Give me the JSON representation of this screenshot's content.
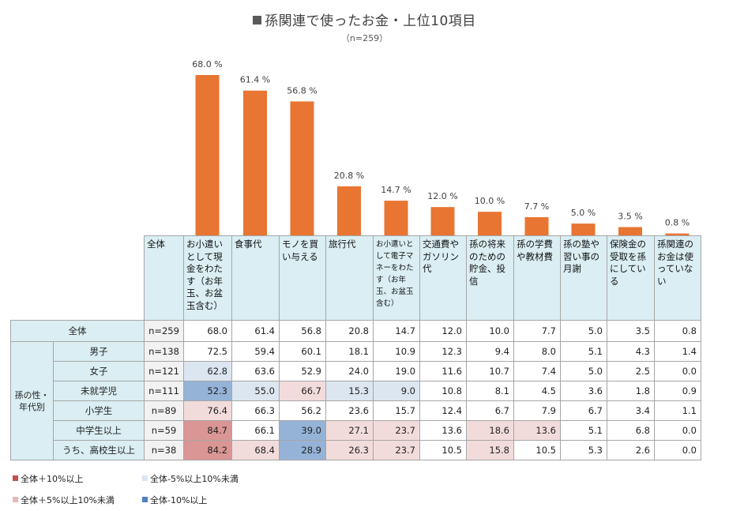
{
  "title": "孫関連で使ったお金・上位10項目",
  "subtitle": "（n=259）",
  "colors": {
    "bar": "#e87532",
    "header_bg": "#daeef3",
    "plus10": "#da9694",
    "plus5": "#f2dcdb",
    "minus5": "#dce6f1",
    "minus10": "#95b3d7"
  },
  "chart_data": {
    "type": "bar",
    "title": "孫関連で使ったお金・上位10項目",
    "subtitle": "（n=259）",
    "categories": [
      "お小遣いとして現金をわたす（お年玉、お盆玉含む）",
      "食事代",
      "モノを買い与える",
      "旅行代",
      "お小遣いとして電子マネーをわたす（お年玉、お盆玉含む）",
      "交通費やガソリン代",
      "孫の将来のための貯金、投信",
      "孫の学費や教材費",
      "孫の塾や習い事の月謝",
      "保険金の受取を孫にしている",
      "孫関連のお金は使っていない"
    ],
    "values": [
      68.0,
      61.4,
      56.8,
      20.8,
      14.7,
      12.0,
      10.0,
      7.7,
      5.0,
      3.5,
      0.8
    ],
    "value_labels": [
      "68.0 %",
      "61.4 %",
      "56.8 %",
      "20.8 %",
      "14.7 %",
      "12.0 %",
      "10.0 %",
      "7.7 %",
      "5.0 %",
      "3.5 %",
      "0.8 %"
    ],
    "unit": "%",
    "ylim": [
      0,
      100
    ],
    "xlabel": "",
    "ylabel": "",
    "grid": false
  },
  "table": {
    "header": {
      "total_label": "全体",
      "columns": [
        "お小遣いとして現金をわたす（お年玉、お盆玉含む）",
        "食事代",
        "モノを買い与える",
        "旅行代",
        "お小遣いとして電子マネーをわたす（お年玉、お盆玉含む）",
        "交通費やガソリン代",
        "孫の将来のための貯金、投信",
        "孫の学費や教材費",
        "孫の塾や習い事の月謝",
        "保険金の受取を孫にしている",
        "孫関連のお金は使っていない"
      ]
    },
    "group_label": "孫の性・年代別",
    "rows": [
      {
        "label": "全体",
        "n": "n=259",
        "values": [
          "68.0",
          "61.4",
          "56.8",
          "20.8",
          "14.7",
          "12.0",
          "10.0",
          "7.7",
          "5.0",
          "3.5",
          "0.8"
        ],
        "flags": [
          "",
          "",
          "",
          "",
          "",
          "",
          "",
          "",
          "",
          "",
          ""
        ]
      },
      {
        "label": "男子",
        "n": "n=138",
        "values": [
          "72.5",
          "59.4",
          "60.1",
          "18.1",
          "10.9",
          "12.3",
          "9.4",
          "8.0",
          "5.1",
          "4.3",
          "1.4"
        ],
        "flags": [
          "",
          "",
          "",
          "",
          "",
          "",
          "",
          "",
          "",
          "",
          ""
        ]
      },
      {
        "label": "女子",
        "n": "n=121",
        "values": [
          "62.8",
          "63.6",
          "52.9",
          "24.0",
          "19.0",
          "11.6",
          "10.7",
          "7.4",
          "5.0",
          "2.5",
          "0.0"
        ],
        "flags": [
          "m5",
          "",
          "",
          "",
          "",
          "",
          "",
          "",
          "",
          "",
          ""
        ]
      },
      {
        "label": "未就学児",
        "n": "n=111",
        "values": [
          "52.3",
          "55.0",
          "66.7",
          "15.3",
          "9.0",
          "10.8",
          "8.1",
          "4.5",
          "3.6",
          "1.8",
          "0.9"
        ],
        "flags": [
          "m10",
          "m5",
          "p5",
          "m5",
          "m5",
          "",
          "",
          "",
          "",
          "",
          ""
        ]
      },
      {
        "label": "小学生",
        "n": "n=89",
        "values": [
          "76.4",
          "66.3",
          "56.2",
          "23.6",
          "15.7",
          "12.4",
          "6.7",
          "7.9",
          "6.7",
          "3.4",
          "1.1"
        ],
        "flags": [
          "p5",
          "",
          "",
          "",
          "",
          "",
          "",
          "",
          "",
          "",
          ""
        ]
      },
      {
        "label": "中学生以上",
        "n": "n=59",
        "values": [
          "84.7",
          "66.1",
          "39.0",
          "27.1",
          "23.7",
          "13.6",
          "18.6",
          "13.6",
          "5.1",
          "6.8",
          "0.0"
        ],
        "flags": [
          "p10",
          "",
          "m10",
          "p5",
          "p5",
          "",
          "p5",
          "p5",
          "",
          "",
          ""
        ]
      },
      {
        "label": "うち、高校生以上",
        "n": "n=38",
        "values": [
          "84.2",
          "68.4",
          "28.9",
          "26.3",
          "23.7",
          "10.5",
          "15.8",
          "10.5",
          "5.3",
          "2.6",
          "0.0"
        ],
        "flags": [
          "p10",
          "p5",
          "m10",
          "p5",
          "p5",
          "",
          "p5",
          "",
          "",
          "",
          ""
        ]
      }
    ]
  },
  "legend": [
    {
      "key": "p10",
      "label": "全体＋10%以上"
    },
    {
      "key": "m5",
      "label": "全体-5%以上10%未満"
    },
    {
      "key": "p5",
      "label": "全体＋5%以上10%未満"
    },
    {
      "key": "m10",
      "label": "全体-10%以上"
    }
  ]
}
